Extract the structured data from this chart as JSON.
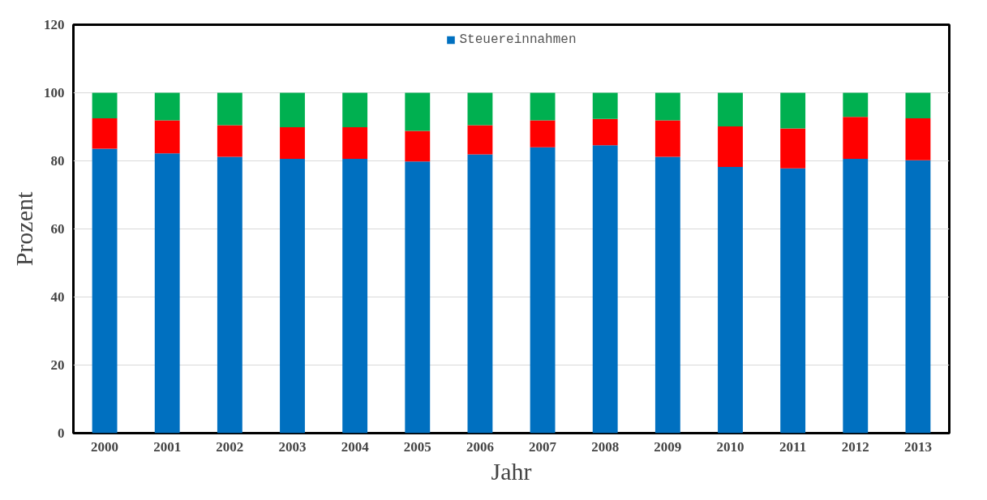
{
  "chart_data": {
    "type": "bar",
    "stacked": true,
    "xlabel": "Jahr",
    "ylabel": "Prozent",
    "categories": [
      "2000",
      "2001",
      "2002",
      "2003",
      "2004",
      "2005",
      "2006",
      "2007",
      "2008",
      "2009",
      "2010",
      "2011",
      "2012",
      "2013"
    ],
    "series": [
      {
        "name": "Steuereinnahmen",
        "color": "#0070c0",
        "values": [
          83.6,
          82.2,
          81.2,
          80.6,
          80.6,
          79.8,
          81.9,
          84.0,
          84.6,
          81.2,
          78.2,
          77.8,
          80.6,
          80.2
        ]
      },
      {
        "color": "#ff0000",
        "values": [
          8.9,
          9.7,
          9.3,
          9.3,
          9.3,
          9.0,
          8.6,
          7.9,
          7.7,
          10.7,
          11.9,
          11.7,
          12.3,
          12.3
        ]
      },
      {
        "color": "#00b050",
        "values": [
          7.5,
          8.1,
          9.5,
          10.1,
          10.1,
          11.2,
          9.5,
          8.1,
          7.7,
          8.1,
          9.9,
          10.5,
          7.1,
          7.5
        ]
      }
    ],
    "ylim": [
      0,
      120
    ],
    "yticks": [
      0,
      20,
      40,
      60,
      80,
      100,
      120
    ],
    "grid": "y",
    "legend": "top"
  }
}
